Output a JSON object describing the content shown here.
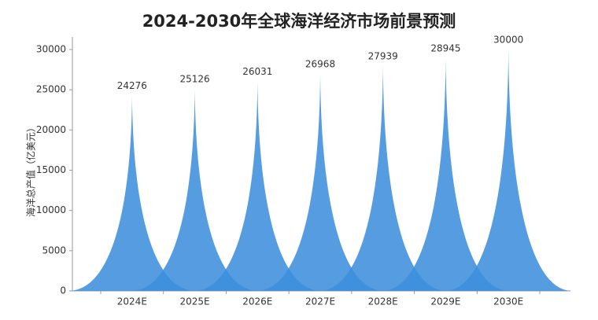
{
  "chart_data": {
    "type": "bar",
    "shape": "spike",
    "title": "2024-2030年全球海洋经济市场前景预测",
    "y_label": "海洋总产值（亿美元）",
    "categories": [
      "2024E",
      "2025E",
      "2026E",
      "2027E",
      "2028E",
      "2029E",
      "2030E"
    ],
    "values": [
      24276,
      25126,
      26031,
      26968,
      27939,
      28945,
      30000
    ],
    "color": "#3d8fdc",
    "ylim": [
      0,
      31500
    ],
    "yticks": [
      0,
      5000,
      10000,
      15000,
      20000,
      25000,
      30000
    ],
    "grid": false
  }
}
